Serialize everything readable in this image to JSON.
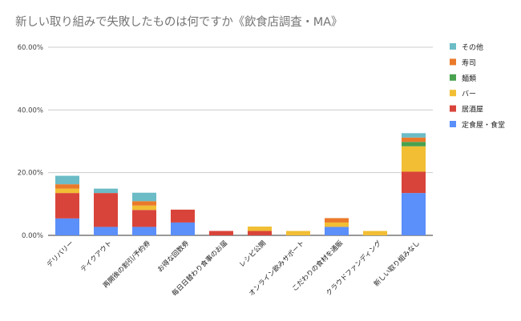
{
  "chart_data": {
    "type": "bar",
    "stacked": true,
    "title": "新しい取り組みで失敗したものは何ですか《飲食店調査・MA》",
    "xlabel": "",
    "ylabel": "",
    "ylim": [
      0,
      60
    ],
    "yticks": [
      "0.00%",
      "20.00%",
      "40.00%",
      "60.00%"
    ],
    "grid": true,
    "legend_position": "right",
    "categories": [
      "デリバリー",
      "テイクアウト",
      "再開後の割引/予約券",
      "お得な回数券",
      "毎日日替わり食事のお届",
      "レシピ公開",
      "オンライン飲みサポート",
      "こだわりの食材を通販",
      "クラウドファンディング",
      "新しい取り組みなし"
    ],
    "series": [
      {
        "name": "定食屋・食堂",
        "color": "#5b8ff9",
        "values": [
          5.4,
          2.7,
          2.7,
          4.1,
          0,
          0,
          0,
          2.7,
          0,
          13.5
        ]
      },
      {
        "name": "居酒屋",
        "color": "#d9443a",
        "values": [
          8.1,
          10.8,
          5.4,
          4.1,
          1.4,
          1.4,
          0,
          0,
          0,
          6.8
        ]
      },
      {
        "name": "バー",
        "color": "#f1be34",
        "values": [
          1.4,
          0,
          1.4,
          0,
          0,
          1.4,
          1.4,
          1.4,
          1.4,
          8.1
        ]
      },
      {
        "name": "麺類",
        "color": "#49a24f",
        "values": [
          0,
          0,
          0,
          0,
          0,
          0,
          0,
          0,
          0,
          1.4
        ]
      },
      {
        "name": "寿司",
        "color": "#ea7a2a",
        "values": [
          1.4,
          0,
          1.4,
          0,
          0,
          0,
          0,
          1.4,
          0,
          1.4
        ]
      },
      {
        "name": "その他",
        "color": "#6bbcc6",
        "values": [
          2.7,
          1.4,
          2.7,
          0,
          0,
          0,
          0,
          0,
          0,
          1.4
        ]
      }
    ]
  }
}
